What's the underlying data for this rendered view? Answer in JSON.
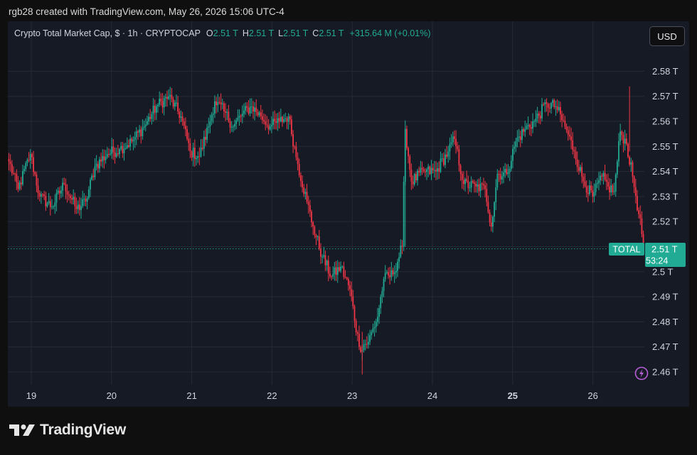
{
  "caption": "rgb28 created with TradingView.com, May 26, 2026 15:06 UTC-4",
  "legend": {
    "symbol": "Crypto Total Market Cap, $ · 1h · CRYPTOCAP",
    "open_label": "O",
    "open": "2.51 T",
    "high_label": "H",
    "high": "2.51 T",
    "low_label": "L",
    "low": "2.51 T",
    "close_label": "C",
    "close": "2.51 T",
    "change": "+315.64 M (+0.01%)"
  },
  "currency": "USD",
  "price_tag": {
    "label": "TOTAL",
    "price": "2.51 T",
    "countdown": "53:24"
  },
  "brand": "TradingView",
  "colors": {
    "up": "#22ab94",
    "down": "#f23645",
    "background": "#161a25",
    "accent_icon": "#b65fd6"
  },
  "chart_data": {
    "type": "candlestick",
    "title": "Crypto Total Market Cap, $ · 1h · CRYPTOCAP",
    "ylim": [
      2.455,
      2.595
    ],
    "y_ticks": [
      "2.46 T",
      "2.47 T",
      "2.48 T",
      "2.49 T",
      "2.5 T",
      "2.51 T",
      "2.52 T",
      "2.53 T",
      "2.54 T",
      "2.55 T",
      "2.56 T",
      "2.57 T",
      "2.58 T"
    ],
    "y_values": [
      2.46,
      2.47,
      2.48,
      2.49,
      2.5,
      2.51,
      2.52,
      2.53,
      2.54,
      2.55,
      2.56,
      2.57,
      2.58
    ],
    "x_ticks": [
      "19",
      "20",
      "21",
      "22",
      "23",
      "24",
      "25",
      "26"
    ],
    "x_tick_bold": "25",
    "last_price": 2.5115,
    "anchors": [
      [
        0,
        2.544
      ],
      [
        6,
        2.533
      ],
      [
        14,
        2.547
      ],
      [
        20,
        2.53
      ],
      [
        28,
        2.526
      ],
      [
        36,
        2.535
      ],
      [
        44,
        2.525
      ],
      [
        50,
        2.528
      ],
      [
        56,
        2.542
      ],
      [
        64,
        2.547
      ],
      [
        72,
        2.549
      ],
      [
        80,
        2.552
      ],
      [
        88,
        2.558
      ],
      [
        96,
        2.566
      ],
      [
        104,
        2.57
      ],
      [
        112,
        2.562
      ],
      [
        118,
        2.548
      ],
      [
        124,
        2.546
      ],
      [
        130,
        2.558
      ],
      [
        134,
        2.568
      ],
      [
        140,
        2.564
      ],
      [
        146,
        2.558
      ],
      [
        152,
        2.563
      ],
      [
        158,
        2.566
      ],
      [
        164,
        2.562
      ],
      [
        170,
        2.558
      ],
      [
        176,
        2.56
      ],
      [
        182,
        2.562
      ],
      [
        188,
        2.543
      ],
      [
        194,
        2.528
      ],
      [
        198,
        2.518
      ],
      [
        204,
        2.506
      ],
      [
        210,
        2.498
      ],
      [
        216,
        2.502
      ],
      [
        222,
        2.493
      ],
      [
        228,
        2.47
      ],
      [
        234,
        2.472
      ],
      [
        240,
        2.482
      ],
      [
        244,
        2.497
      ],
      [
        250,
        2.499
      ],
      [
        256,
        2.51
      ],
      [
        258,
        2.557
      ],
      [
        262,
        2.536
      ],
      [
        270,
        2.54
      ],
      [
        278,
        2.54
      ],
      [
        286,
        2.548
      ],
      [
        290,
        2.553
      ],
      [
        296,
        2.535
      ],
      [
        304,
        2.534
      ],
      [
        310,
        2.533
      ],
      [
        314,
        2.518
      ],
      [
        318,
        2.539
      ],
      [
        324,
        2.539
      ],
      [
        330,
        2.552
      ],
      [
        336,
        2.557
      ],
      [
        342,
        2.56
      ],
      [
        350,
        2.567
      ],
      [
        356,
        2.566
      ],
      [
        362,
        2.558
      ],
      [
        368,
        2.548
      ],
      [
        374,
        2.536
      ],
      [
        380,
        2.53
      ],
      [
        386,
        2.538
      ],
      [
        390,
        2.534
      ],
      [
        394,
        2.532
      ],
      [
        398,
        2.556
      ],
      [
        402,
        2.551
      ],
      [
        406,
        2.538
      ],
      [
        410,
        2.523
      ],
      [
        413,
        2.5115
      ]
    ]
  }
}
